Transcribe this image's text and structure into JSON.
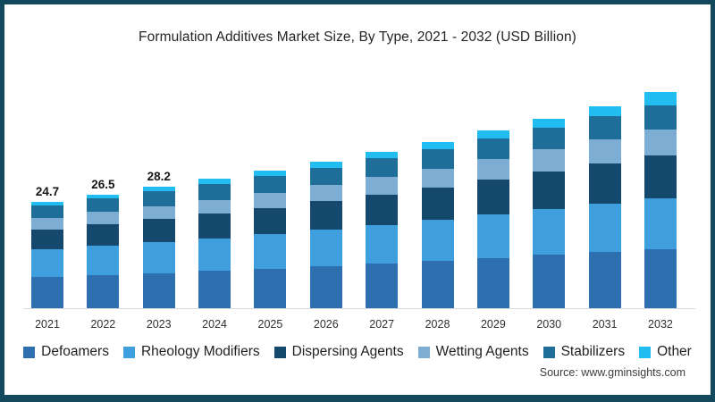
{
  "title": "Formulation Additives Market Size, By Type, 2021 - 2032 (USD Billion)",
  "source": "Source: www.gminsights.com",
  "frame_color": "#14485c",
  "chart_data": {
    "type": "bar",
    "stacked": true,
    "title": "Formulation Additives Market Size, By Type, 2021 - 2032 (USD Billion)",
    "unit": "USD Billion",
    "xlabel": "",
    "ylabel": "Market Size (USD Billion)",
    "ylim": [
      0,
      52
    ],
    "grid": false,
    "legend_position": "bottom",
    "categories": [
      "2021",
      "2022",
      "2023",
      "2024",
      "2025",
      "2026",
      "2027",
      "2028",
      "2029",
      "2030",
      "2031",
      "2032"
    ],
    "series": [
      {
        "name": "Defoamers",
        "color": "#2e6fb0",
        "values": [
          7.5,
          7.9,
          8.3,
          8.8,
          9.3,
          9.9,
          10.5,
          11.1,
          11.8,
          12.5,
          13.2,
          13.8
        ]
      },
      {
        "name": "Rheology Modifiers",
        "color": "#3f9ede",
        "values": [
          6.4,
          6.8,
          7.2,
          7.6,
          8.0,
          8.5,
          9.0,
          9.5,
          10.1,
          10.7,
          11.2,
          11.7
        ]
      },
      {
        "name": "Dispersing Agents",
        "color": "#14496d",
        "values": [
          4.5,
          4.9,
          5.3,
          5.7,
          6.1,
          6.5,
          7.0,
          7.5,
          8.0,
          8.6,
          9.3,
          9.9
        ]
      },
      {
        "name": "Wetting Agents",
        "color": "#7dadd2",
        "values": [
          2.6,
          2.8,
          3.0,
          3.2,
          3.5,
          3.8,
          4.1,
          4.4,
          4.8,
          5.1,
          5.6,
          6.1
        ]
      },
      {
        "name": "Stabilizers",
        "color": "#1e6e99",
        "values": [
          3.0,
          3.2,
          3.4,
          3.6,
          3.8,
          4.0,
          4.2,
          4.4,
          4.7,
          4.9,
          5.2,
          5.5
        ]
      },
      {
        "name": "Other",
        "color": "#22bdf0",
        "values": [
          0.7,
          0.9,
          1.0,
          1.2,
          1.3,
          1.4,
          1.5,
          1.7,
          1.8,
          2.1,
          2.4,
          3.1
        ]
      }
    ],
    "totals": [
      24.7,
      26.5,
      28.2,
      30.1,
      32.0,
      34.1,
      36.3,
      38.6,
      41.2,
      43.9,
      46.9,
      50.1
    ],
    "visible_total_labels": {
      "2021": "24.7",
      "2022": "26.5",
      "2023": "28.2"
    }
  }
}
